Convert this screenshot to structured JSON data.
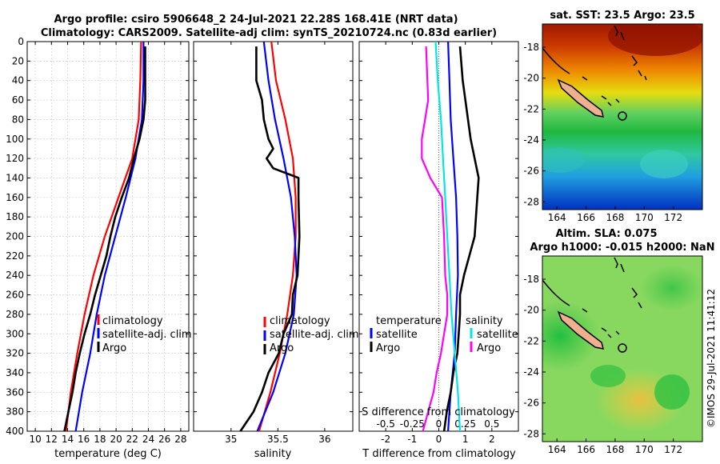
{
  "title_line1": "Argo profile: csiro 5906648_2 24-Jul-2021 22.28S 168.41E (NRT data)",
  "title_line2": "Climatology: CARS2009. Satellite-adj clim: synTS_20210724.nc (0.83d earlier)",
  "colors": {
    "climatology": "#ff0000",
    "satellite": "#0000ff",
    "argo": "#000000",
    "s_clim": "#ff00ff",
    "s_sat": "#00e5e5"
  },
  "chart_data": [
    {
      "type": "line",
      "name": "temperature",
      "xlabel": "temperature (deg C)",
      "ylabel": "",
      "xlim": [
        9,
        29
      ],
      "ylim": [
        0,
        400
      ],
      "grid": true,
      "xticks": [
        10,
        12,
        14,
        16,
        18,
        20,
        22,
        24,
        26,
        28
      ],
      "yticks": [
        0,
        20,
        40,
        60,
        80,
        100,
        120,
        140,
        160,
        180,
        200,
        220,
        240,
        260,
        280,
        300,
        320,
        340,
        360,
        380,
        400
      ],
      "legend": [
        "climatology",
        "satellite-adj. clim",
        "Argo"
      ],
      "series": [
        {
          "name": "climatology",
          "color": "climatology",
          "depth": [
            0,
            40,
            80,
            120,
            160,
            200,
            240,
            280,
            320,
            360,
            400
          ],
          "values": [
            23.1,
            23.0,
            22.8,
            22.0,
            20.3,
            18.6,
            17.2,
            16.1,
            15.2,
            14.4,
            13.8
          ]
        },
        {
          "name": "satellite-adj. clim",
          "color": "satellite",
          "depth": [
            0,
            40,
            80,
            120,
            160,
            200,
            240,
            280,
            320,
            360,
            400
          ],
          "values": [
            23.4,
            23.4,
            23.2,
            22.4,
            21.2,
            19.9,
            18.6,
            17.6,
            16.8,
            15.8,
            15.0
          ]
        },
        {
          "name": "Argo",
          "color": "argo",
          "depth": [
            5,
            60,
            80,
            100,
            120,
            140,
            160,
            180,
            200,
            220,
            240,
            260,
            280,
            300,
            320,
            340,
            360,
            380,
            400
          ],
          "values": [
            23.6,
            23.6,
            23.4,
            22.9,
            22.2,
            21.6,
            20.7,
            19.9,
            19.3,
            18.8,
            18.1,
            17.4,
            16.8,
            16.1,
            15.5,
            15.0,
            14.6,
            14.1,
            13.6
          ]
        }
      ]
    },
    {
      "type": "line",
      "name": "salinity",
      "xlabel": "salinity",
      "xlim": [
        34.6,
        36.3
      ],
      "ylim": [
        0,
        400
      ],
      "xticks": [
        35,
        35.5,
        36
      ],
      "xticklabels": [
        "35",
        "35.5",
        "36"
      ],
      "legend": [
        "climatology",
        "satellite-adj. clim",
        "Argo"
      ],
      "series": [
        {
          "name": "climatology",
          "color": "climatology",
          "depth": [
            0,
            40,
            80,
            120,
            160,
            200,
            240,
            280,
            320,
            360,
            400
          ],
          "values": [
            35.43,
            35.48,
            35.58,
            35.66,
            35.69,
            35.69,
            35.66,
            35.6,
            35.52,
            35.42,
            35.3
          ]
        },
        {
          "name": "satellite-adj. clim",
          "color": "satellite",
          "depth": [
            0,
            40,
            80,
            120,
            160,
            200,
            240,
            280,
            320,
            360,
            400
          ],
          "values": [
            35.35,
            35.4,
            35.47,
            35.56,
            35.64,
            35.68,
            35.7,
            35.67,
            35.58,
            35.45,
            35.28
          ]
        },
        {
          "name": "Argo",
          "color": "argo",
          "depth": [
            5,
            40,
            60,
            80,
            100,
            110,
            120,
            130,
            140,
            160,
            200,
            240,
            260,
            280,
            300,
            320,
            340,
            360,
            380,
            400
          ],
          "values": [
            35.27,
            35.27,
            35.33,
            35.35,
            35.4,
            35.45,
            35.38,
            35.45,
            35.72,
            35.72,
            35.73,
            35.71,
            35.66,
            35.65,
            35.56,
            35.51,
            35.4,
            35.33,
            35.24,
            35.1
          ]
        }
      ]
    },
    {
      "type": "line",
      "name": "difference from climatology",
      "xlabel": "T difference from climatology",
      "xlim": [
        -3,
        3
      ],
      "ylim": [
        0,
        400
      ],
      "xticks": [
        -2,
        -1,
        0,
        1,
        2
      ],
      "top_axis_label": "S difference from climatology",
      "top_ticks": [
        "-0.5",
        "-0.25",
        "0",
        "0.25",
        "0.5"
      ],
      "legend_left": {
        "header": "temperature",
        "items": [
          "satellite",
          "Argo"
        ]
      },
      "legend_right": {
        "header": "salinity",
        "items": [
          "satellite",
          "Argo"
        ]
      },
      "series": [
        {
          "name": "T satellite",
          "color": "satellite",
          "depth": [
            0,
            40,
            80,
            120,
            160,
            200,
            240,
            280,
            320,
            360,
            400
          ],
          "values": [
            0.35,
            0.4,
            0.45,
            0.55,
            0.65,
            0.7,
            0.72,
            0.65,
            0.6,
            0.45,
            0.35
          ]
        },
        {
          "name": "T Argo",
          "color": "argo",
          "depth": [
            5,
            40,
            60,
            80,
            100,
            120,
            140,
            160,
            200,
            240,
            260,
            280,
            300,
            320,
            340,
            360,
            380,
            400
          ],
          "values": [
            0.8,
            0.9,
            1.0,
            1.1,
            1.2,
            1.35,
            1.5,
            1.45,
            1.35,
            0.95,
            0.8,
            0.8,
            0.75,
            0.7,
            0.55,
            0.45,
            0.3,
            0.2
          ]
        },
        {
          "name": "S satellite",
          "color": "s_sat",
          "depth": [
            0,
            40,
            80,
            120,
            160,
            200,
            240,
            280,
            320,
            360,
            400
          ],
          "values": [
            -0.03,
            -0.01,
            0.02,
            0.04,
            0.06,
            0.08,
            0.1,
            0.12,
            0.15,
            0.18,
            0.2
          ]
        },
        {
          "name": "S Argo",
          "color": "s_clim",
          "depth": [
            5,
            60,
            80,
            100,
            120,
            140,
            160,
            200,
            240,
            260,
            280,
            300,
            320,
            340,
            360,
            380,
            400
          ],
          "values": [
            -0.12,
            -0.1,
            -0.13,
            -0.16,
            -0.16,
            -0.08,
            0.03,
            0.05,
            0.06,
            0.08,
            0.08,
            0.05,
            0.02,
            -0.02,
            -0.05,
            -0.1,
            -0.15
          ]
        }
      ]
    },
    {
      "type": "heatmap",
      "name": "sat SST map",
      "title": "sat. SST: 23.5 Argo: 23.5",
      "xlim": [
        163,
        174
      ],
      "ylim": [
        -28.5,
        -16.5
      ],
      "xticks": [
        164,
        166,
        168,
        170,
        172
      ],
      "yticks": [
        -18,
        -20,
        -22,
        -24,
        -26,
        -28
      ],
      "argo_lon": 168.41,
      "argo_lat": -22.28
    },
    {
      "type": "heatmap",
      "name": "SLA map",
      "title_line1": "Altim. SLA: 0.075",
      "title_line2": "Argo h1000: -0.015 h2000: NaN",
      "xlim": [
        163,
        174
      ],
      "ylim": [
        -28.5,
        -16.5
      ],
      "xticks": [
        164,
        166,
        168,
        170,
        172
      ],
      "yticks": [
        -18,
        -20,
        -22,
        -24,
        -26,
        -28
      ],
      "argo_lon": 168.41,
      "argo_lat": -22.28
    }
  ],
  "watermark": "©IMOS 29-Jul-2021 11:41:12"
}
